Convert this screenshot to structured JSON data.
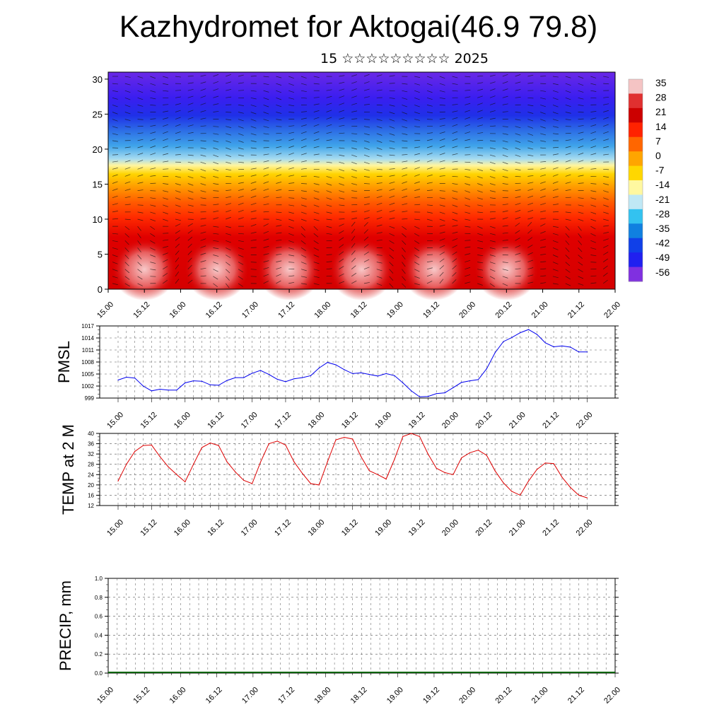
{
  "header": {
    "title": "Kazhydromet for Aktogai(46.9 79.8)",
    "subtitle": "15 ☆☆☆☆☆☆☆☆☆ 2025"
  },
  "chart_data": [
    {
      "type": "heatmap",
      "description": "Vertical time-height cross-section of temperature with wind vectors",
      "ylim": [
        0,
        31
      ],
      "yticks": [
        "0",
        "5",
        "10",
        "15",
        "20",
        "25",
        "30"
      ],
      "xticks": [
        "15.00",
        "15.12",
        "16.00",
        "16.12",
        "17.00",
        "17.12",
        "18.00",
        "18.12",
        "19.00",
        "19.12",
        "20.00",
        "20.12",
        "21.00",
        "21.12",
        "22.00"
      ],
      "colorbar": {
        "labels": [
          "35",
          "28",
          "21",
          "14",
          "7",
          "0",
          "-7",
          "-14",
          "-21",
          "-28",
          "-35",
          "-42",
          "-49",
          "-56"
        ],
        "colors_top_to_bottom": [
          "#f5c4c4",
          "#e03030",
          "#cc0000",
          "#ff2200",
          "#ff6600",
          "#ffa500",
          "#ffd700",
          "#fff8a0",
          "#bfe8f5",
          "#33c2f0",
          "#1080e0",
          "#1040e8",
          "#2020f0",
          "#8030e0"
        ]
      }
    },
    {
      "type": "line",
      "ylabel": "PMSL",
      "ylim": [
        999,
        1017
      ],
      "yticks": [
        "999",
        "1002",
        "1005",
        "1008",
        "1011",
        "1014",
        "1017"
      ],
      "xticks": [
        "15.00",
        "15.12",
        "16.00",
        "16.12",
        "17.00",
        "17.12",
        "18.00",
        "18.12",
        "19.00",
        "19.12",
        "20.00",
        "20.12",
        "21.00",
        "21.12",
        "22.00"
      ],
      "color": "#0000ee",
      "x": [
        0,
        0.125,
        0.25,
        0.375,
        0.5,
        0.625,
        0.75,
        0.875,
        1,
        1.125,
        1.25,
        1.375,
        1.5,
        1.625,
        1.75,
        1.875,
        2,
        2.125,
        2.25,
        2.375,
        2.5,
        2.625,
        2.75,
        2.875,
        3,
        3.125,
        3.25,
        3.375,
        3.5,
        3.625,
        3.75,
        3.875,
        4,
        4.125,
        4.25,
        4.375,
        4.5,
        4.625,
        4.75,
        4.875,
        5,
        5.125,
        5.25,
        5.375,
        5.5,
        5.625,
        5.75,
        5.875,
        6,
        6.125,
        6.25,
        6.375,
        6.5,
        6.625,
        6.75,
        6.875,
        7
      ],
      "values": [
        1003.5,
        1004.2,
        1004.0,
        1002.0,
        1000.8,
        1001.2,
        1001.0,
        1001.0,
        1002.8,
        1003.3,
        1003.2,
        1002.3,
        1002.2,
        1003.4,
        1004.1,
        1004.1,
        1005.2,
        1005.9,
        1004.9,
        1003.7,
        1003.1,
        1003.8,
        1004.1,
        1004.6,
        1006.5,
        1007.9,
        1007.3,
        1006.1,
        1005.1,
        1005.3,
        1004.9,
        1004.5,
        1005.1,
        1004.6,
        1002.8,
        1000.8,
        999.3,
        999.4,
        1000.1,
        1000.3,
        1001.6,
        1002.9,
        1003.3,
        1003.6,
        1006.3,
        1010.3,
        1013.1,
        1014.1,
        1015.3,
        1016.1,
        1014.9,
        1012.8,
        1011.8,
        1012.0,
        1011.7,
        1010.5,
        1010.5
      ]
    },
    {
      "type": "line",
      "ylabel": "TEMP at 2 M",
      "ylim": [
        12,
        40
      ],
      "yticks": [
        "12",
        "16",
        "20",
        "24",
        "28",
        "32",
        "36",
        "40"
      ],
      "xticks": [
        "15.00",
        "15.12",
        "16.00",
        "16.12",
        "17.00",
        "17.12",
        "18.00",
        "18.12",
        "19.00",
        "19.12",
        "20.00",
        "20.12",
        "21.00",
        "21.12",
        "22.00"
      ],
      "color": "#dd0000",
      "x": [
        0,
        0.125,
        0.25,
        0.375,
        0.5,
        0.625,
        0.75,
        0.875,
        1,
        1.125,
        1.25,
        1.375,
        1.5,
        1.625,
        1.75,
        1.875,
        2,
        2.125,
        2.25,
        2.375,
        2.5,
        2.625,
        2.75,
        2.875,
        3,
        3.125,
        3.25,
        3.375,
        3.5,
        3.625,
        3.75,
        3.875,
        4,
        4.125,
        4.25,
        4.375,
        4.5,
        4.625,
        4.75,
        4.875,
        5,
        5.125,
        5.25,
        5.375,
        5.5,
        5.625,
        5.75,
        5.875,
        6,
        6.125,
        6.25,
        6.375,
        6.5,
        6.625,
        6.75,
        6.875,
        7
      ],
      "values": [
        21.5,
        28.0,
        33.0,
        35.3,
        35.5,
        31.0,
        27.0,
        24.0,
        21.2,
        28.0,
        34.5,
        36.3,
        35.3,
        29.0,
        25.0,
        21.8,
        20.5,
        28.8,
        36.0,
        37.0,
        35.5,
        29.0,
        24.5,
        20.5,
        20.0,
        29.0,
        37.5,
        38.5,
        37.8,
        31.0,
        25.5,
        24.0,
        22.3,
        30.0,
        38.8,
        40.0,
        38.8,
        32.0,
        26.5,
        24.8,
        24.0,
        30.5,
        32.5,
        33.5,
        31.5,
        25.5,
        20.8,
        17.5,
        16.0,
        21.5,
        26.0,
        28.5,
        28.3,
        23.0,
        19.0,
        16.0,
        15.0
      ]
    },
    {
      "type": "bar",
      "ylabel": "PRECIP, mm",
      "ylim": [
        0.0,
        1.0
      ],
      "yticks": [
        "0.0",
        "0.2",
        "0.4",
        "0.6",
        "0.8",
        "1.0"
      ],
      "xticks": [
        "15.00",
        "15.12",
        "16.00",
        "16.12",
        "17.00",
        "17.12",
        "18.00",
        "18.12",
        "19.00",
        "19.12",
        "20.00",
        "20.12",
        "21.00",
        "21.12",
        "22.00"
      ],
      "color": "#006400",
      "values": [
        0,
        0,
        0,
        0,
        0,
        0,
        0,
        0,
        0,
        0,
        0,
        0,
        0,
        0,
        0
      ]
    }
  ]
}
